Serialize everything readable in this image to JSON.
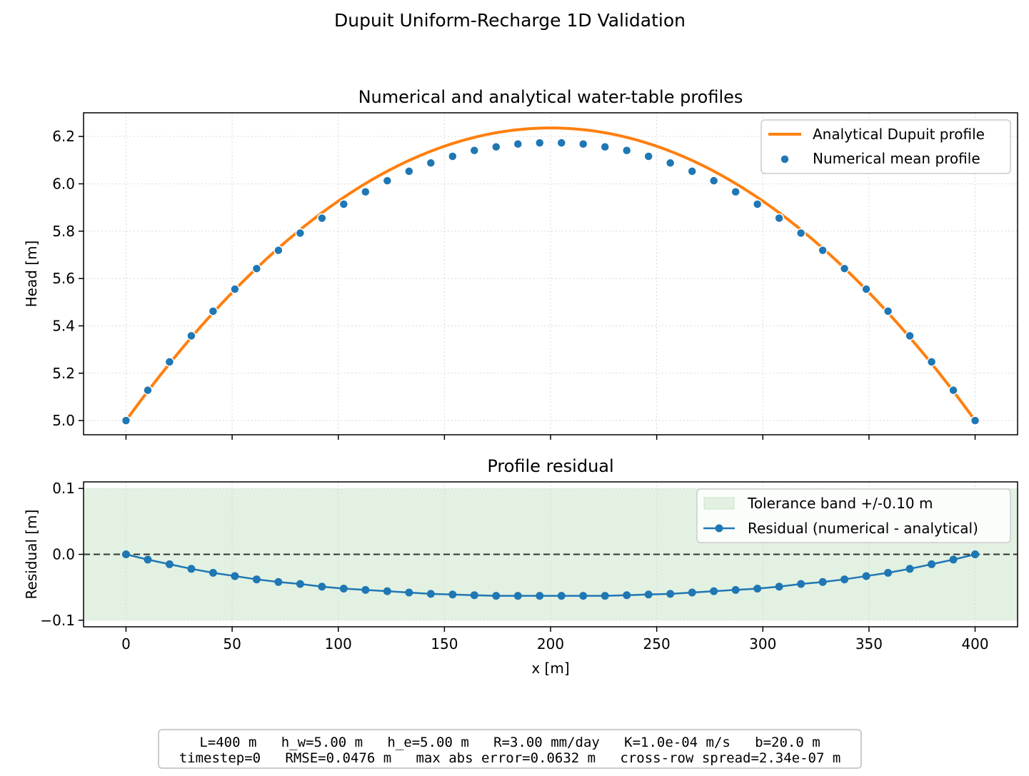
{
  "figure": {
    "suptitle": "Dupuit Uniform-Recharge 1D Validation",
    "footer_lines": [
      "L=400 m   h_w=5.00 m   h_e=5.00 m   R=3.00 mm/day   K=1.0e-04 m/s   b=20.0 m",
      "timestep=0   RMSE=0.0476 m   max abs error=0.0632 m   cross-row spread=2.34e-07 m"
    ]
  },
  "colors": {
    "analytical": "#ff7f0e",
    "numerical": "#1f77b4",
    "tolerance_band": "#e2f1e2",
    "zero_line": "#333333",
    "grid": "#d9d9d9"
  },
  "chart_data": [
    {
      "type": "line",
      "title": "Numerical and analytical water-table profiles",
      "xlabel": "",
      "ylabel": "Head [m]",
      "xlim": [
        -20,
        420
      ],
      "ylim": [
        4.94,
        6.3
      ],
      "xticks": [
        0,
        50,
        100,
        150,
        200,
        250,
        300,
        350,
        400
      ],
      "xticklabels": [],
      "yticks": [
        5.0,
        5.2,
        5.4,
        5.6,
        5.8,
        6.0,
        6.2
      ],
      "yticklabels": [
        "5.0",
        "5.2",
        "5.4",
        "5.6",
        "5.8",
        "6.0",
        "6.2"
      ],
      "grid": true,
      "legend_position": "top-right",
      "series": [
        {
          "name": "Analytical Dupuit profile",
          "style": "line",
          "function": "dupuit_uniform_recharge",
          "params": {
            "L": 400,
            "h_w": 5.0,
            "h_e": 5.0,
            "peak": 6.236
          }
        },
        {
          "name": "Numerical mean profile",
          "style": "scatter",
          "x": [
            0,
            10.26,
            20.51,
            30.77,
            41.03,
            51.28,
            61.54,
            71.79,
            82.05,
            92.31,
            102.56,
            112.82,
            123.08,
            133.33,
            143.59,
            153.85,
            164.1,
            174.36,
            184.62,
            194.87,
            205.13,
            215.38,
            225.64,
            235.9,
            246.15,
            256.41,
            266.67,
            276.92,
            287.18,
            297.44,
            307.69,
            317.95,
            328.21,
            338.46,
            348.72,
            358.97,
            369.23,
            379.49,
            389.74,
            400
          ],
          "y": [
            5.0,
            5.128,
            5.248,
            5.358,
            5.462,
            5.555,
            5.642,
            5.719,
            5.792,
            5.855,
            5.914,
            5.966,
            6.013,
            6.053,
            6.088,
            6.116,
            6.141,
            6.156,
            6.168,
            6.173,
            6.173,
            6.168,
            6.156,
            6.141,
            6.116,
            6.088,
            6.053,
            6.013,
            5.966,
            5.914,
            5.855,
            5.792,
            5.719,
            5.642,
            5.555,
            5.462,
            5.358,
            5.248,
            5.128,
            5.0
          ]
        }
      ]
    },
    {
      "type": "line",
      "title": "Profile residual",
      "xlabel": "x [m]",
      "ylabel": "Residual [m]",
      "xlim": [
        -20,
        420
      ],
      "ylim": [
        -0.11,
        0.11
      ],
      "xticks": [
        0,
        50,
        100,
        150,
        200,
        250,
        300,
        350,
        400
      ],
      "xticklabels": [
        "0",
        "50",
        "100",
        "150",
        "200",
        "250",
        "300",
        "350",
        "400"
      ],
      "yticks": [
        -0.1,
        0.0,
        0.1
      ],
      "yticklabels": [
        "−0.1",
        "0.0",
        "0.1"
      ],
      "grid": true,
      "legend_position": "top-right",
      "reference_line": {
        "y": 0.0,
        "style": "dashed"
      },
      "tolerance_band": {
        "name": "Tolerance band +/-0.10 m",
        "ymin": -0.1,
        "ymax": 0.1
      },
      "series": [
        {
          "name": "Residual (numerical - analytical)",
          "style": "line+markers",
          "x": [
            0,
            10.26,
            20.51,
            30.77,
            41.03,
            51.28,
            61.54,
            71.79,
            82.05,
            92.31,
            102.56,
            112.82,
            123.08,
            133.33,
            143.59,
            153.85,
            164.1,
            174.36,
            184.62,
            194.87,
            205.13,
            215.38,
            225.64,
            235.9,
            246.15,
            256.41,
            266.67,
            276.92,
            287.18,
            297.44,
            307.69,
            317.95,
            328.21,
            338.46,
            348.72,
            358.97,
            369.23,
            379.49,
            389.74,
            400
          ],
          "y": [
            0.0,
            -0.008,
            -0.015,
            -0.022,
            -0.028,
            -0.033,
            -0.038,
            -0.042,
            -0.045,
            -0.049,
            -0.052,
            -0.054,
            -0.056,
            -0.058,
            -0.06,
            -0.061,
            -0.062,
            -0.063,
            -0.063,
            -0.063,
            -0.063,
            -0.063,
            -0.063,
            -0.062,
            -0.061,
            -0.06,
            -0.058,
            -0.056,
            -0.054,
            -0.052,
            -0.049,
            -0.045,
            -0.042,
            -0.038,
            -0.033,
            -0.028,
            -0.022,
            -0.015,
            -0.008,
            0.0
          ]
        }
      ]
    }
  ]
}
